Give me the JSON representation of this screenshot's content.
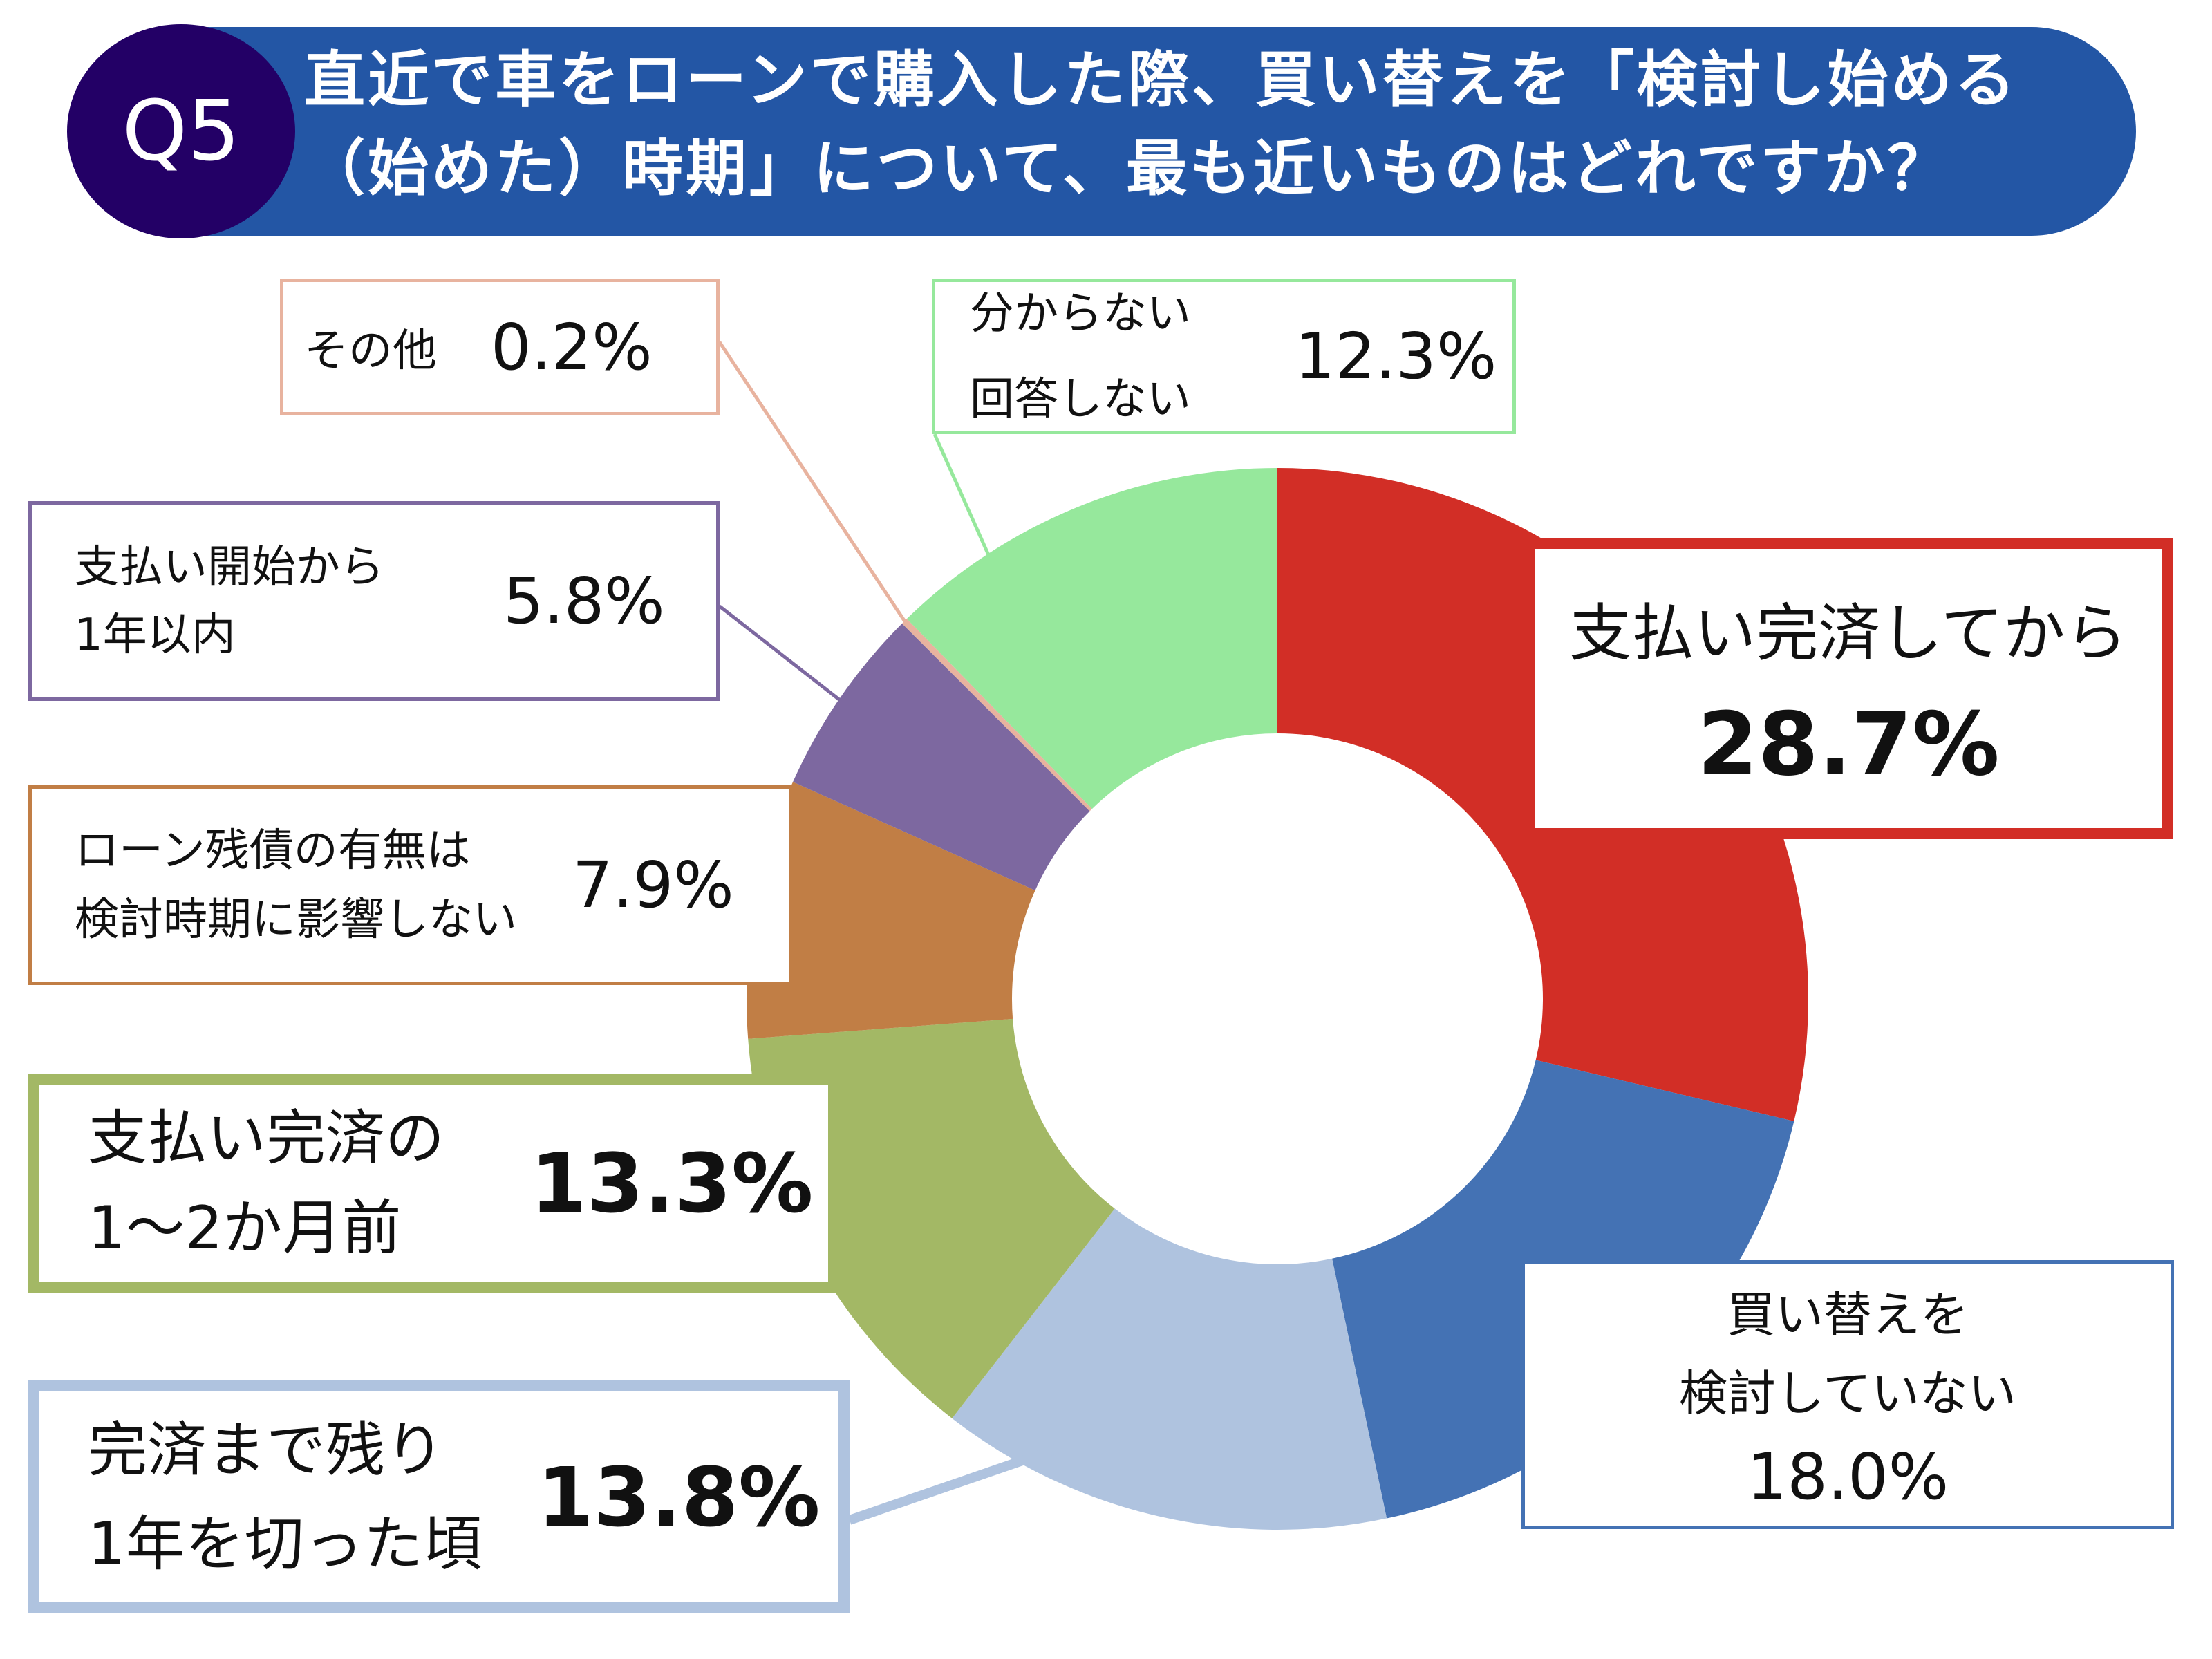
{
  "header": {
    "badge": "Q5",
    "title_line1": "直近で車をローンで購入した際、買い替えを「検討し始める",
    "title_line2": "（始めた）時期」について、最も近いものはどれですか？"
  },
  "chart_data": {
    "type": "pie",
    "variant": "donut",
    "start": "top, clockwise",
    "slices": [
      {
        "label": "支払い完済してから",
        "value": 28.7,
        "color": "#D22E26"
      },
      {
        "label": "買い替えを検討していない",
        "value": 18.0,
        "color": "#4472B4"
      },
      {
        "label": "完済まで残り1年を切った頃",
        "value": 13.8,
        "color": "#AFC3DF"
      },
      {
        "label": "支払い完済の1〜2か月前",
        "value": 13.3,
        "color": "#A3B865"
      },
      {
        "label": "ローン残債の有無は検討時期に影響しない",
        "value": 7.9,
        "color": "#C17E45"
      },
      {
        "label": "支払い開始から1年以内",
        "value": 5.8,
        "color": "#7D68A0"
      },
      {
        "label": "その他",
        "value": 0.2,
        "color": "#E8B39F"
      },
      {
        "label": "分からない回答しない",
        "value": 12.3,
        "color": "#96E89C"
      }
    ]
  },
  "labels": {
    "red": {
      "text": "支払い完済してから",
      "pct": "28.7%"
    },
    "blue": {
      "text": "買い替えを\n検討していない",
      "pct": "18.0%"
    },
    "lightblue": {
      "text": "完済まで残り\n1年を切った頃",
      "pct": "13.8%"
    },
    "green": {
      "text": "支払い完済の\n1〜2か月前",
      "pct": "13.3%"
    },
    "brown": {
      "text": "ローン残債の有無は\n検討時期に影響しない",
      "pct": "7.9%"
    },
    "purple": {
      "text": "支払い開始から\n1年以内",
      "pct": "5.8%"
    },
    "other": {
      "text": "その他",
      "pct": "0.2%"
    },
    "unknown": {
      "text": "分からない\n回答しない",
      "pct": "12.3%"
    }
  }
}
